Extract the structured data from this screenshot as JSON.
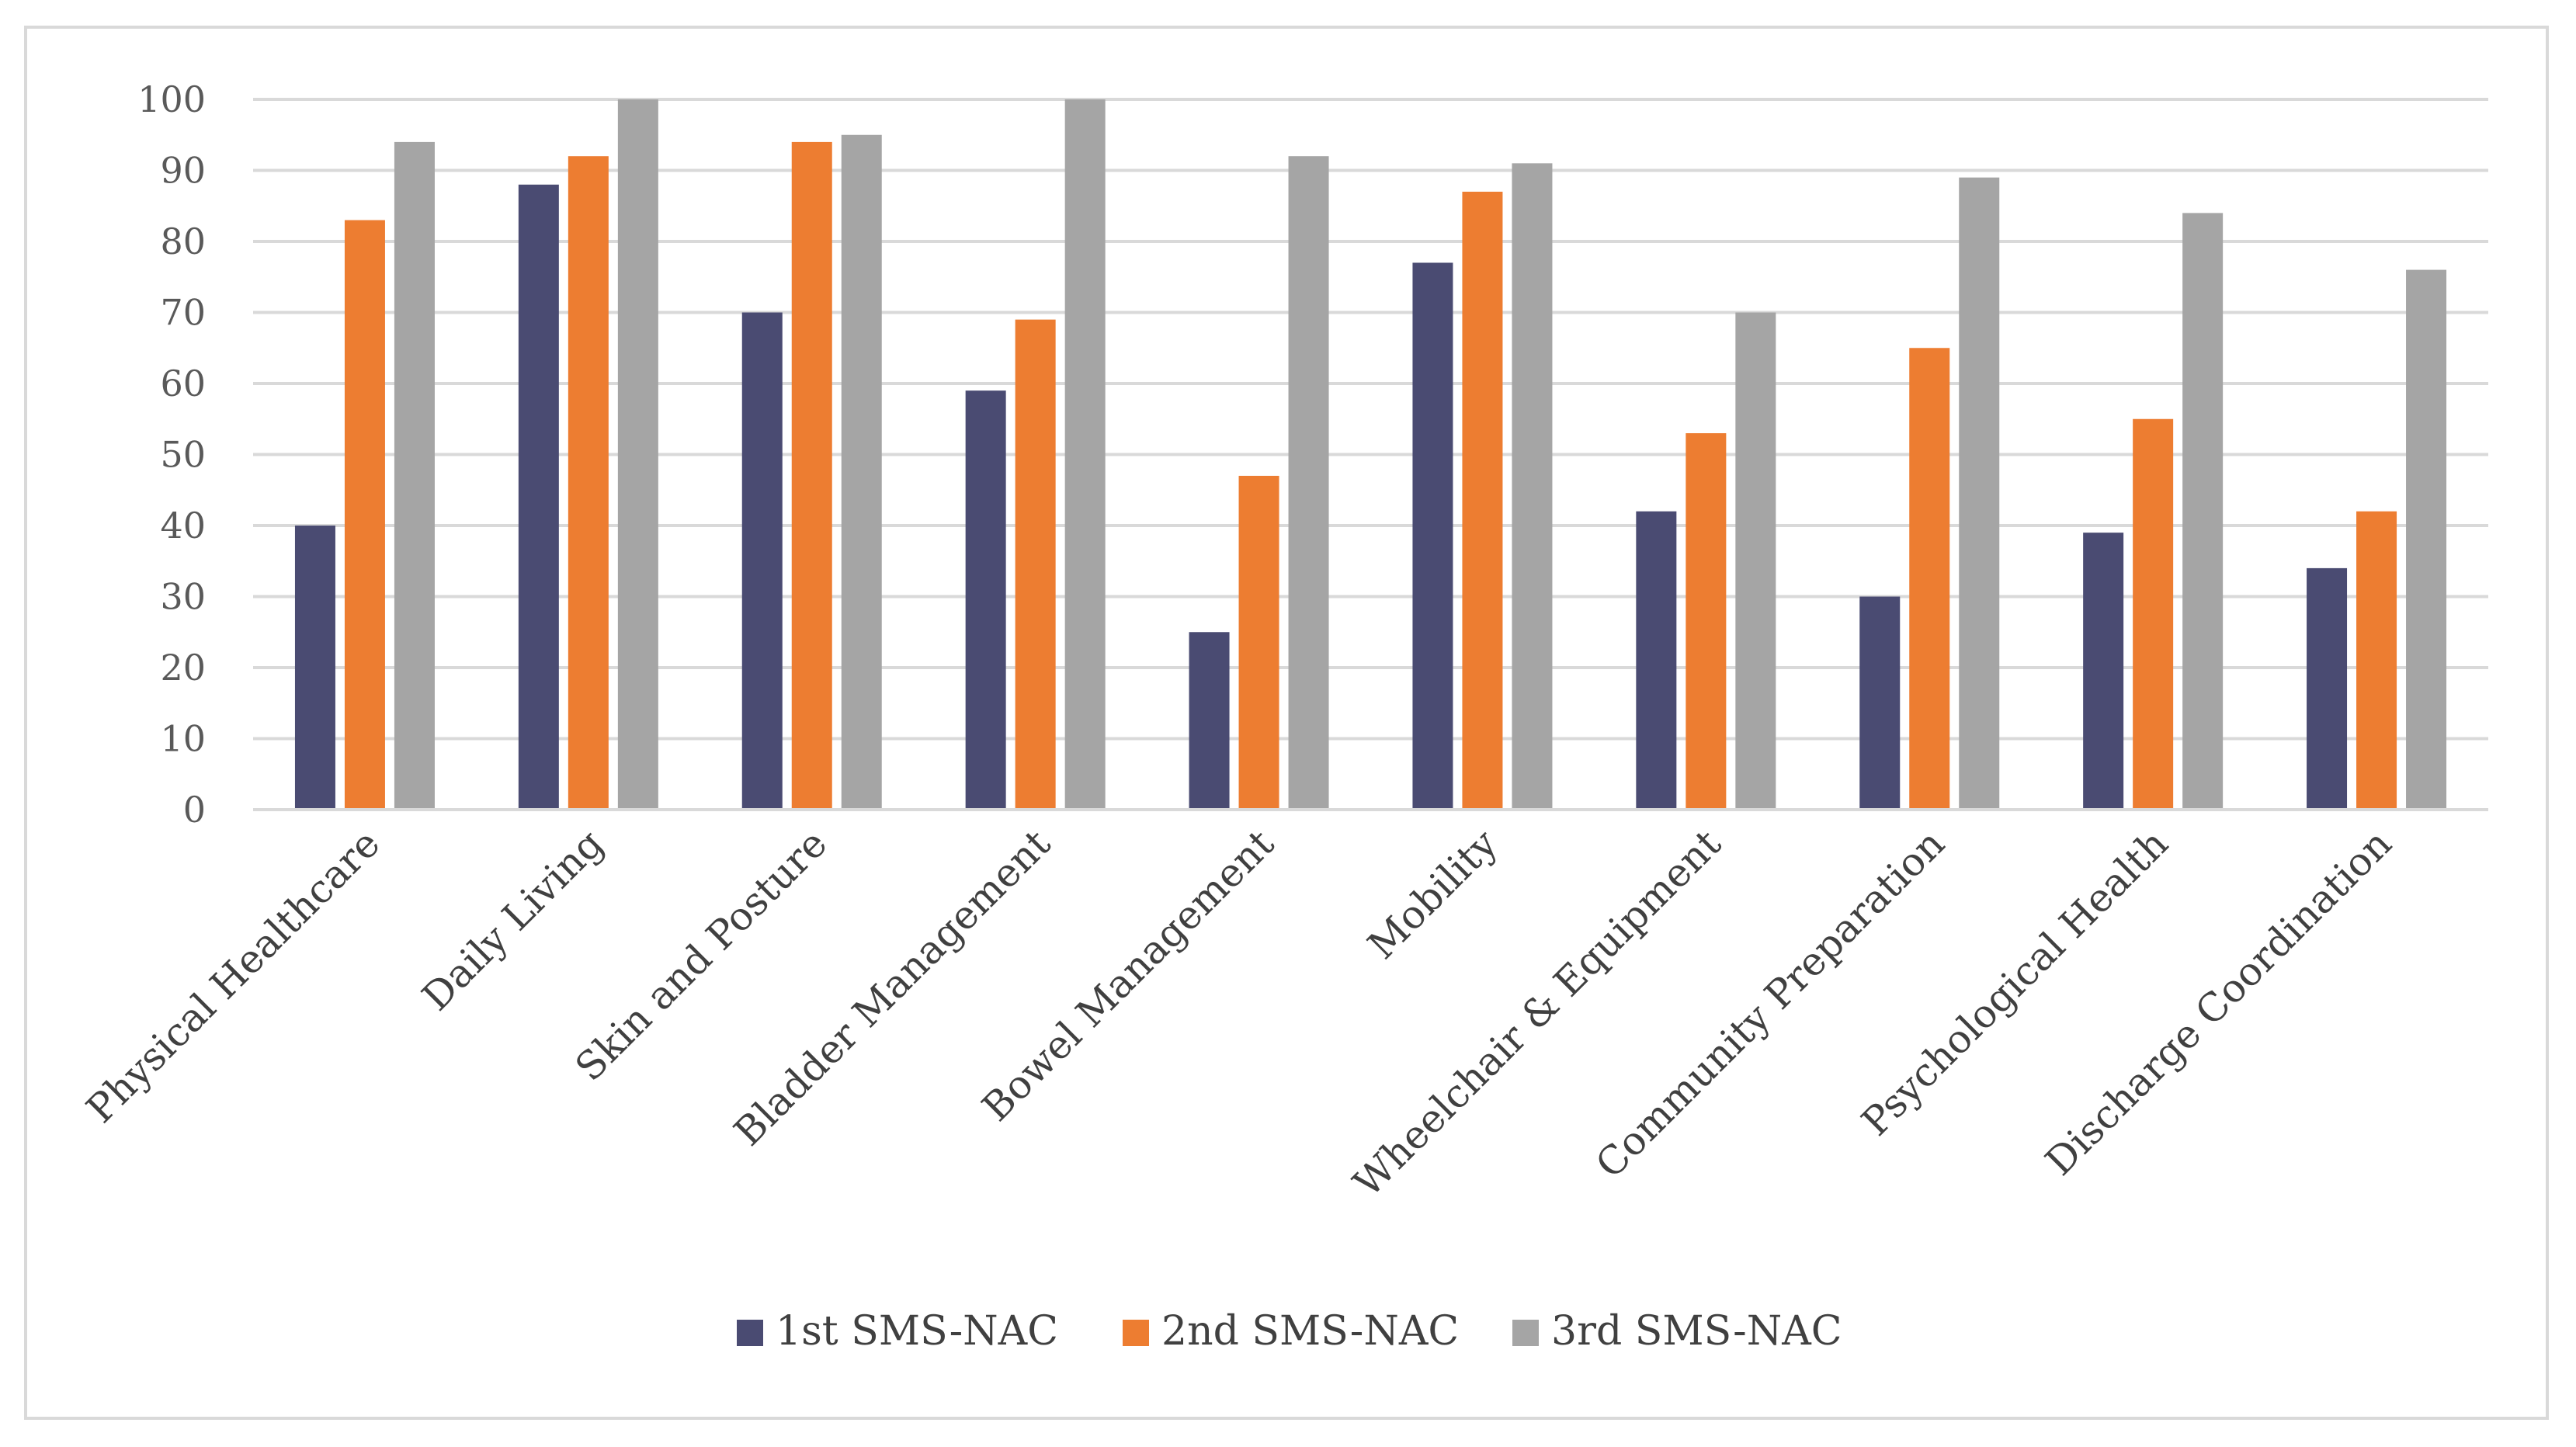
{
  "chart_data": {
    "type": "bar",
    "title": "",
    "xlabel": "",
    "ylabel": "",
    "ylim": [
      0,
      100
    ],
    "ytick_step": 10,
    "grid": true,
    "legend_position": "bottom",
    "categories": [
      "Physical Healthcare",
      "Daily Living",
      "Skin and Posture",
      "Bladder Management",
      "Bowel Management",
      "Mobility",
      "Wheelchair & Equipment",
      "Community Preparation",
      "Psychological Health",
      "Discharge Coordination"
    ],
    "series": [
      {
        "name": "1st SMS-NAC",
        "color": "#4a4b72",
        "values": [
          40,
          88,
          70,
          59,
          25,
          77,
          42,
          30,
          39,
          34
        ]
      },
      {
        "name": "2nd SMS-NAC",
        "color": "#ed7d31",
        "values": [
          83,
          92,
          94,
          69,
          47,
          87,
          53,
          65,
          55,
          42
        ]
      },
      {
        "name": "3rd SMS-NAC",
        "color": "#a5a5a5",
        "values": [
          94,
          100,
          95,
          100,
          92,
          91,
          70,
          89,
          84,
          76
        ]
      }
    ]
  }
}
